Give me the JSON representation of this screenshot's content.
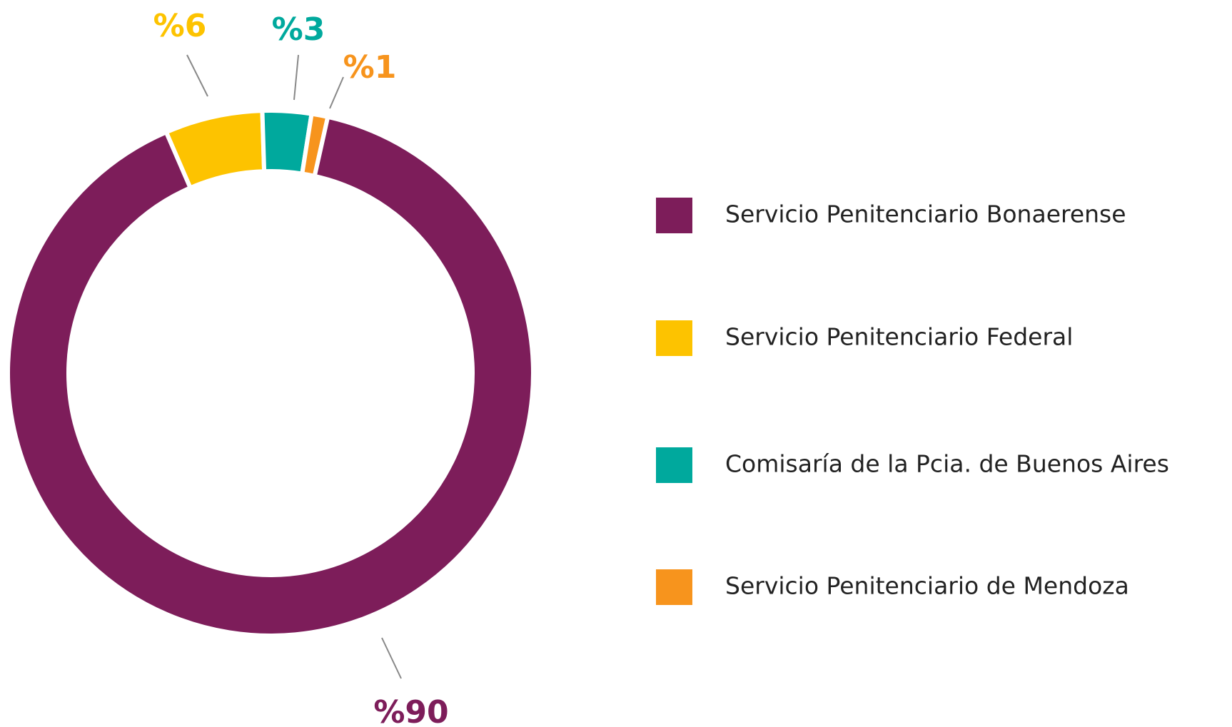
{
  "chart_data": {
    "type": "donut",
    "categories": [
      "Servicio Penitenciario Bonaerense",
      "Servicio Penitenciario Federal",
      "Comisaría de la Pcia. de Buenos Aires",
      "Servicio Penitenciario de Mendoza"
    ],
    "values": [
      90,
      6,
      3,
      1
    ],
    "value_labels": [
      "%90",
      "%6",
      "%3",
      "%1"
    ],
    "colors": [
      "#7d1d5a",
      "#fdc300",
      "#00a99d",
      "#f7941d"
    ]
  }
}
